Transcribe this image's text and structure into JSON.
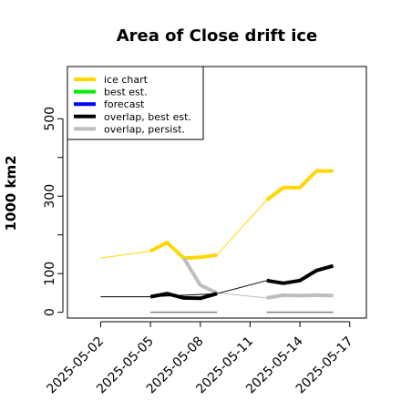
{
  "chart_data": {
    "type": "line",
    "title": "Area of Close drift ice",
    "xlabel": "",
    "ylabel": "1000 km2",
    "ylim": [
      -15,
      635
    ],
    "xlim": [
      "2025-04-31",
      "2025-05-18"
    ],
    "yticks": [
      0,
      100,
      300,
      500
    ],
    "xticks": [
      "2025-05-02",
      "2025-05-05",
      "2025-05-08",
      "2025-05-11",
      "2025-05-14",
      "2025-05-17"
    ],
    "highlight_xtick": "2025-05-08",
    "highlight_color": "#228b22",
    "grid": false,
    "legend_position": "top-left",
    "legend": [
      {
        "label": "ice chart",
        "color": "#ffd700"
      },
      {
        "label": "best est.",
        "color": "#00ee00"
      },
      {
        "label": "forecast",
        "color": "#0000ff"
      },
      {
        "label": "overlap, best est.",
        "color": "#000000"
      },
      {
        "label": "overlap, persist.",
        "color": "#bebebe"
      }
    ],
    "series": [
      {
        "name": "ice chart",
        "color": "#ffd700",
        "style": "thin",
        "x": [
          "2025-05-02",
          "2025-05-05",
          "2025-05-06",
          "2025-05-07",
          "2025-05-08",
          "2025-05-09",
          "2025-05-12",
          "2025-05-13",
          "2025-05-14",
          "2025-05-15",
          "2025-05-16"
        ],
        "values": [
          140,
          158,
          180,
          140,
          142,
          148,
          290,
          322,
          322,
          365,
          365
        ]
      },
      {
        "name": "ice chart",
        "color": "#ffd700",
        "style": "thick",
        "x": [
          "2025-05-05",
          "2025-05-06",
          "2025-05-07",
          "2025-05-08",
          "2025-05-09"
        ],
        "values": [
          158,
          180,
          140,
          142,
          148
        ]
      },
      {
        "name": "ice chart",
        "color": "#ffd700",
        "style": "thick",
        "x": [
          "2025-05-12",
          "2025-05-13",
          "2025-05-14",
          "2025-05-15",
          "2025-05-16"
        ],
        "values": [
          290,
          322,
          322,
          365,
          365
        ]
      },
      {
        "name": "overlap, persist.",
        "color": "#bebebe",
        "style": "thin",
        "x": [
          "2025-05-07",
          "2025-05-08",
          "2025-05-09",
          "2025-05-12"
        ],
        "values": [
          140,
          70,
          50,
          37
        ]
      },
      {
        "name": "overlap, persist.",
        "color": "#bebebe",
        "style": "thick",
        "x": [
          "2025-05-07",
          "2025-05-08",
          "2025-05-09"
        ],
        "values": [
          140,
          70,
          50
        ]
      },
      {
        "name": "overlap, persist.",
        "color": "#bebebe",
        "style": "thick",
        "x": [
          "2025-05-12",
          "2025-05-13",
          "2025-05-14",
          "2025-05-15",
          "2025-05-16"
        ],
        "values": [
          37,
          44,
          43,
          44,
          43
        ]
      },
      {
        "name": "overlap, best est.",
        "color": "#000000",
        "style": "thin",
        "x": [
          "2025-05-02",
          "2025-05-05",
          "2025-05-09",
          "2025-05-12"
        ],
        "values": [
          40,
          40,
          48,
          82
        ]
      },
      {
        "name": "overlap, best est.",
        "color": "#000000",
        "style": "thick",
        "x": [
          "2025-05-05",
          "2025-05-06",
          "2025-05-07",
          "2025-05-08",
          "2025-05-09"
        ],
        "values": [
          40,
          48,
          37,
          36,
          48
        ]
      },
      {
        "name": "overlap, best est.",
        "color": "#000000",
        "style": "thick",
        "x": [
          "2025-05-12",
          "2025-05-13",
          "2025-05-14",
          "2025-05-15",
          "2025-05-16"
        ],
        "values": [
          82,
          75,
          82,
          108,
          120
        ]
      },
      {
        "name": "",
        "color": "#808080",
        "style": "hair",
        "x": [
          "2025-05-05",
          "2025-05-09"
        ],
        "values": [
          0,
          0
        ]
      },
      {
        "name": "",
        "color": "#808080",
        "style": "hair",
        "x": [
          "2025-05-12",
          "2025-05-16"
        ],
        "values": [
          0,
          0
        ]
      }
    ]
  }
}
